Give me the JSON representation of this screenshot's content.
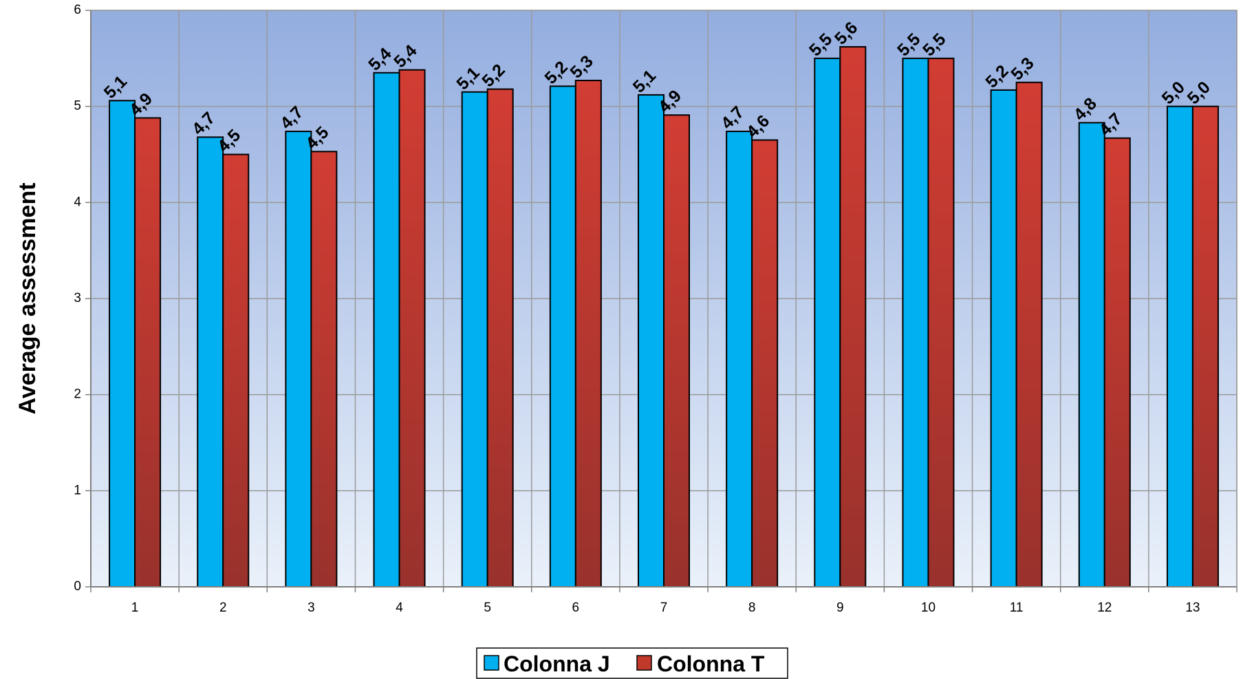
{
  "chart_data": {
    "type": "bar",
    "title": "",
    "xlabel": "",
    "ylabel": "Average assessment",
    "ylim": [
      0,
      6
    ],
    "yticks": [
      "0",
      "1",
      "2",
      "3",
      "4",
      "5",
      "6"
    ],
    "categories": [
      "1",
      "2",
      "3",
      "4",
      "5",
      "6",
      "7",
      "8",
      "9",
      "10",
      "11",
      "12",
      "13"
    ],
    "grid": true,
    "legend_position": "bottom-center",
    "series": [
      {
        "name": "Colonna J",
        "color": "#00b0f0",
        "values": [
          5.06,
          4.68,
          4.74,
          5.35,
          5.15,
          5.21,
          5.12,
          4.74,
          5.5,
          5.5,
          5.17,
          4.83,
          5.0
        ],
        "labels": [
          "5,1",
          "4,7",
          "4,7",
          "5,4",
          "5,1",
          "5,2",
          "5,1",
          "4,7",
          "5,5",
          "5,5",
          "5,2",
          "4,8",
          "5,0"
        ]
      },
      {
        "name": "Colonna T",
        "color": "#c0392b",
        "values": [
          4.88,
          4.5,
          4.53,
          5.38,
          5.18,
          5.27,
          4.91,
          4.65,
          5.62,
          5.5,
          5.25,
          4.67,
          5.0
        ],
        "labels": [
          "4,9",
          "4,5",
          "4,5",
          "5,4",
          "5,2",
          "5,3",
          "4,9",
          "4,6",
          "5,6",
          "5,5",
          "5,3",
          "4,7",
          "5,0"
        ]
      }
    ]
  }
}
